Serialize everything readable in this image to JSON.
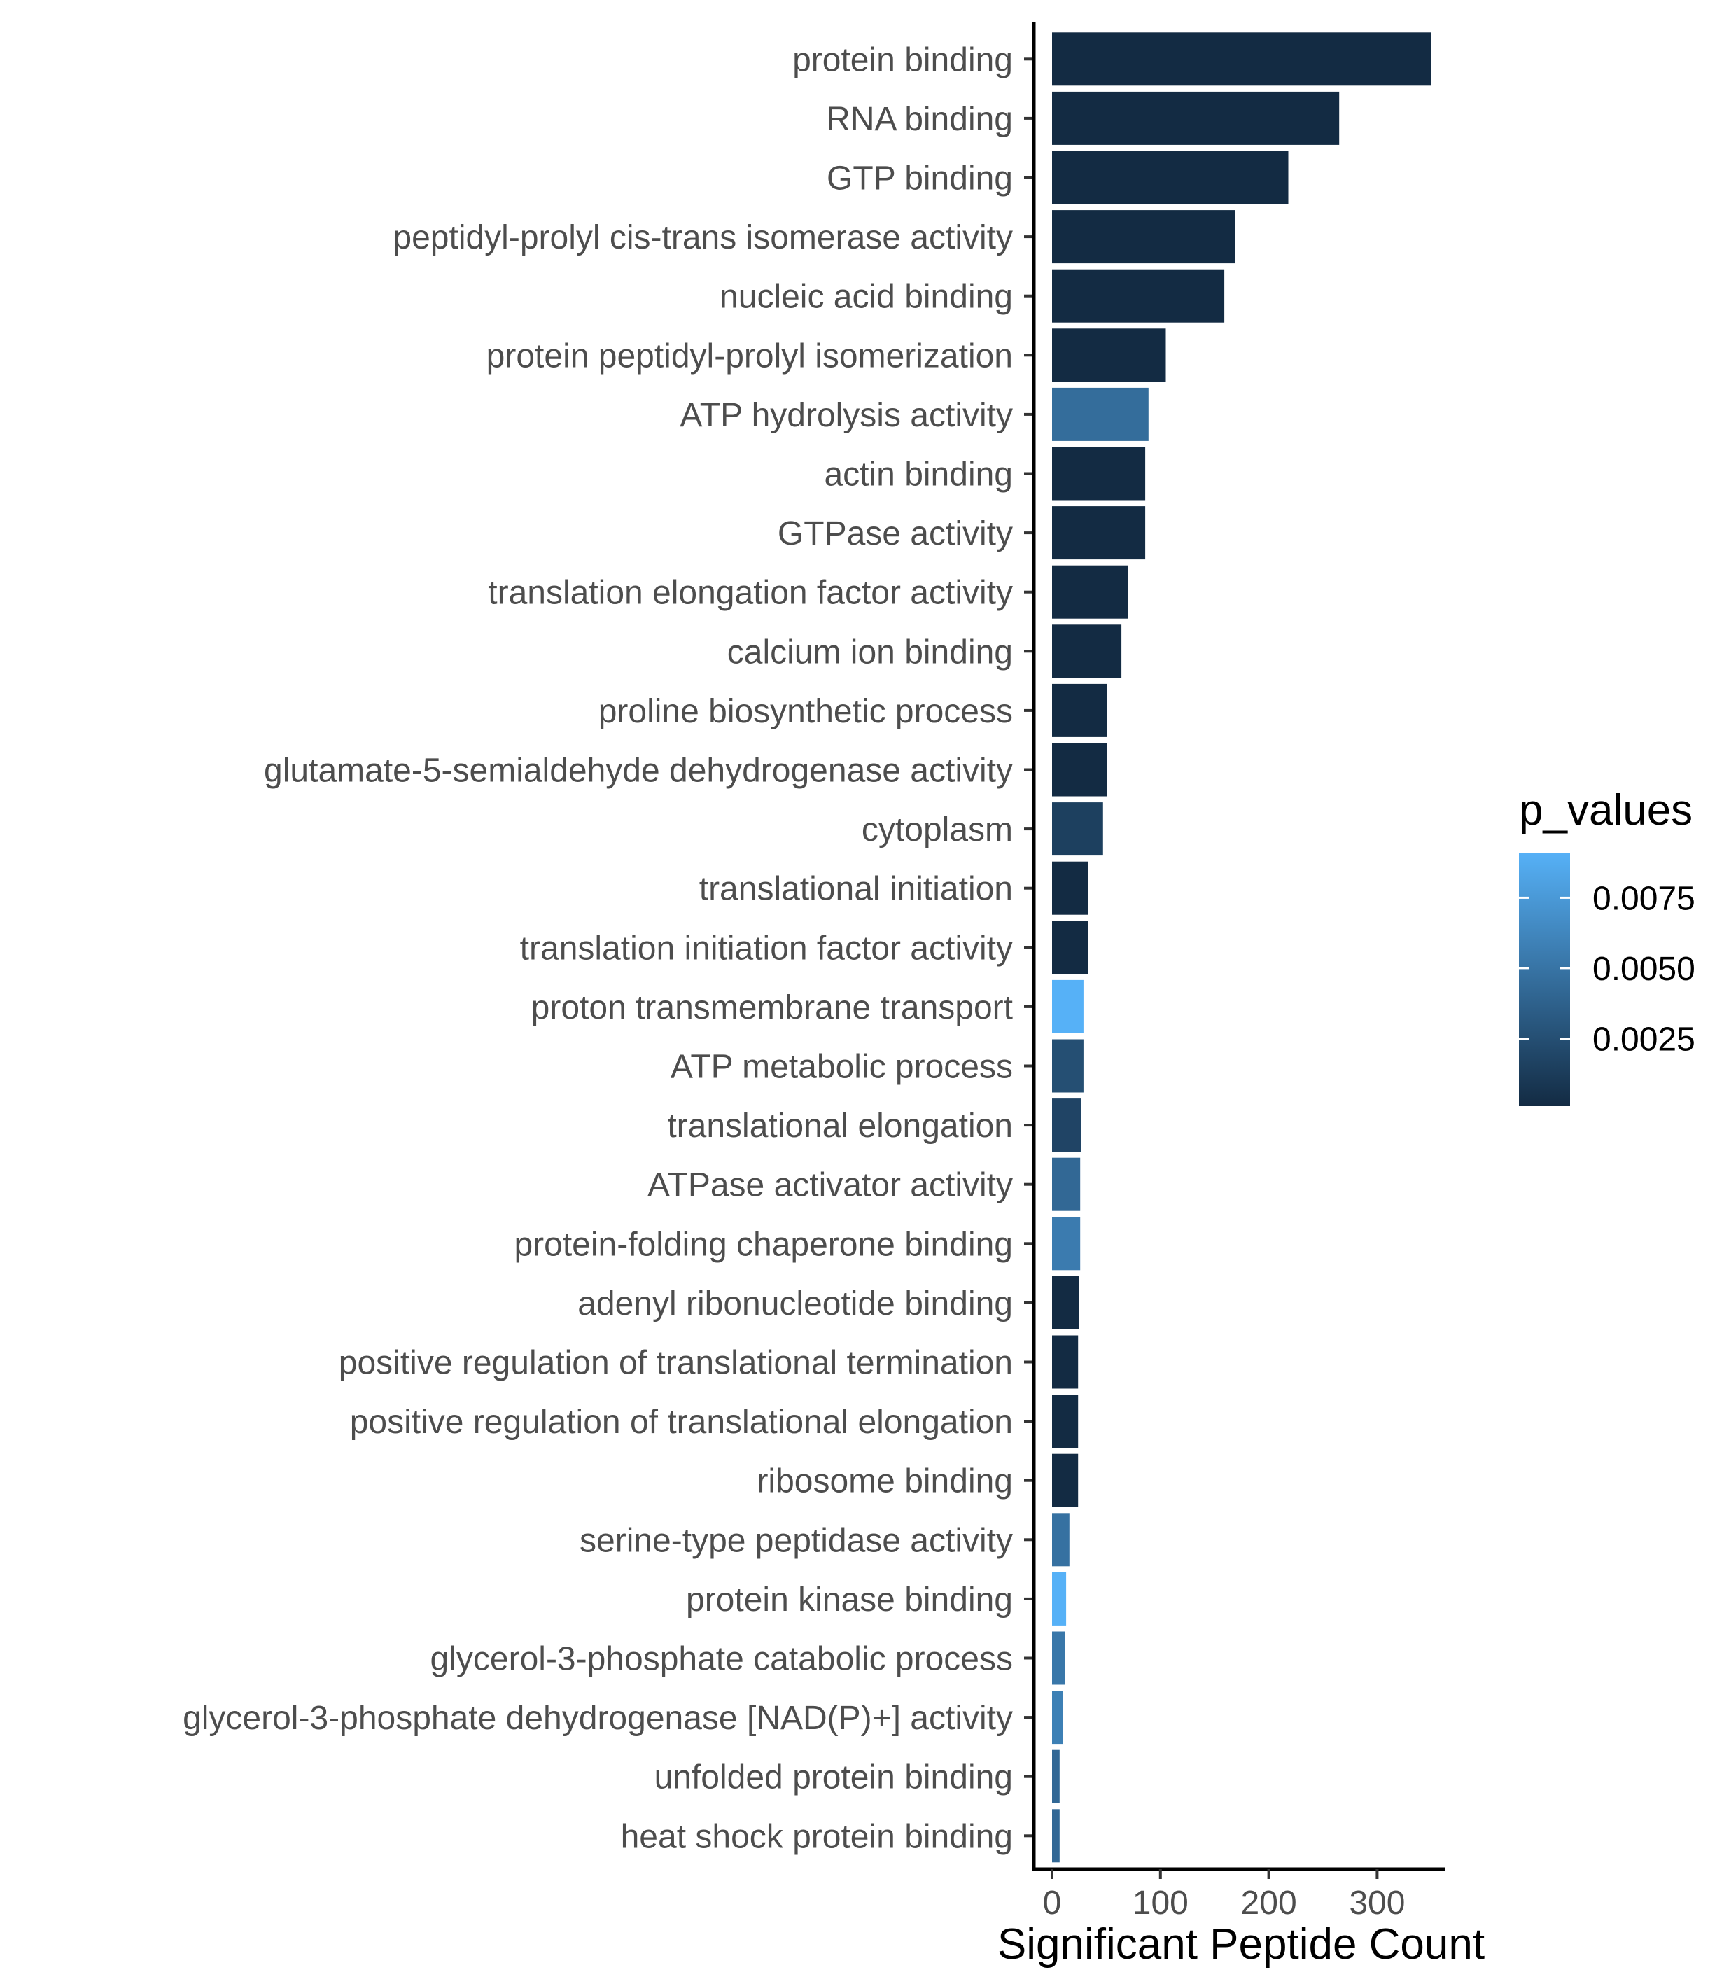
{
  "chart_data": {
    "type": "bar",
    "orientation": "horizontal",
    "title": "",
    "xlabel": "Significant Peptide Count",
    "ylabel": "",
    "xlim": [
      -15,
      370
    ],
    "x_ticks": [
      0,
      100,
      200,
      300
    ],
    "x_tick_labels": [
      "0",
      "100",
      "200",
      "300"
    ],
    "grid": false,
    "legend": {
      "title": "p_values",
      "placement": "right",
      "type": "colorbar",
      "range": [
        0.0001,
        0.0091
      ],
      "ticks": [
        0.0025,
        0.005,
        0.0075
      ],
      "tick_labels": [
        "0.0025",
        "0.0050",
        "0.0075"
      ],
      "color_low": "#132B43",
      "color_high": "#56B1F7"
    },
    "categories": [
      "protein binding",
      "RNA binding",
      "GTP binding",
      "peptidyl-prolyl cis-trans isomerase activity",
      "nucleic acid binding",
      "protein peptidyl-prolyl isomerization",
      "ATP hydrolysis activity",
      "actin binding",
      "GTPase activity",
      "translation elongation factor activity",
      "calcium ion binding",
      "proline biosynthetic process",
      "glutamate-5-semialdehyde dehydrogenase activity",
      "cytoplasm",
      "translational initiation",
      "translation initiation factor activity",
      "proton transmembrane transport",
      "ATP metabolic process",
      "translational elongation",
      "ATPase activator activity",
      "protein-folding chaperone binding",
      "adenyl ribonucleotide binding",
      "positive regulation of translational termination",
      "positive regulation of translational elongation",
      "ribosome binding",
      "serine-type peptidase activity",
      "protein kinase binding",
      "glycerol-3-phosphate catabolic process",
      "glycerol-3-phosphate dehydrogenase [NAD(P)+] activity",
      "unfolded protein binding",
      "heat shock protein binding"
    ],
    "values": [
      350,
      265,
      218,
      169,
      159,
      105,
      89,
      86,
      86,
      70,
      64,
      51,
      51,
      47,
      33,
      33,
      29,
      29,
      27,
      26,
      26,
      25,
      24,
      24,
      24,
      16,
      13,
      12,
      10,
      7,
      7
    ],
    "p_values": [
      0.0001,
      0.0001,
      0.0001,
      0.0001,
      0.0001,
      0.0001,
      0.0045,
      0.0001,
      0.0001,
      0.0001,
      0.0001,
      0.0001,
      0.0001,
      0.0015,
      0.0001,
      0.0001,
      0.0091,
      0.0025,
      0.0018,
      0.0042,
      0.0055,
      0.0001,
      0.0001,
      0.0001,
      0.0001,
      0.0048,
      0.0091,
      0.0052,
      0.0058,
      0.0042,
      0.0042
    ]
  }
}
